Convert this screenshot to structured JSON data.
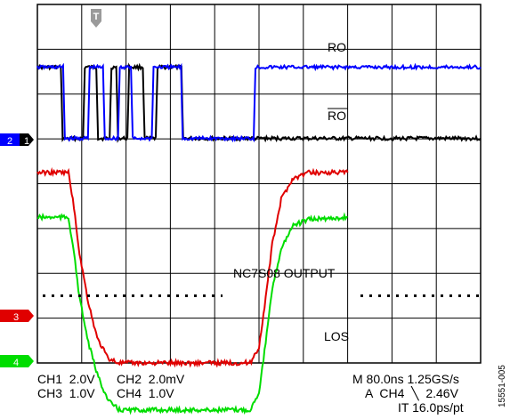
{
  "chart_data": {
    "type": "line",
    "title": "",
    "grid": true,
    "trace_labels": {
      "ro": "RO",
      "ro_bar": "RO",
      "nc7s08": "NC7S08 OUTPUT",
      "los": "LOS"
    },
    "channel_markers": [
      {
        "label": "2",
        "color": "#0000ff"
      },
      {
        "label": "1",
        "color": "#000000"
      },
      {
        "label": "3",
        "color": "#e00000"
      },
      {
        "label": "4",
        "color": "#00dd00"
      }
    ],
    "series": [
      {
        "name": "RO",
        "color": "#000000",
        "x": [
          0,
          0.53,
          0.57,
          1.03,
          1.07,
          1.33,
          1.37,
          1.63,
          1.67,
          1.78,
          1.82,
          2.03,
          2.07,
          2.38,
          2.42,
          2.67,
          2.71,
          3.25,
          3.29,
          10
        ],
        "y": [
          3,
          3,
          0,
          0,
          3,
          3,
          0,
          0,
          3,
          3,
          0,
          0,
          3,
          3,
          0,
          0,
          3,
          3,
          0,
          0
        ]
      },
      {
        "name": "RO (inverted)",
        "color": "#0000ff",
        "x": [
          0,
          0.58,
          0.62,
          1.14,
          1.18,
          1.48,
          1.52,
          1.82,
          1.86,
          2.11,
          2.15,
          2.58,
          2.62,
          3.24,
          3.28,
          4.88,
          4.92,
          10
        ],
        "y": [
          3,
          3,
          0,
          0,
          3,
          3,
          0,
          0,
          3,
          3,
          0,
          0,
          3,
          3,
          0,
          0,
          3,
          3
        ]
      },
      {
        "name": "NC7S08 OUTPUT",
        "color": "#e00000",
        "x": [
          0,
          0.7,
          0.8,
          0.95,
          1.15,
          1.35,
          1.6,
          1.85,
          4.8,
          5.0,
          5.15,
          5.3,
          5.5,
          5.75,
          6.1,
          7.0
        ],
        "y": [
          4.6,
          4.6,
          4.0,
          2.8,
          1.7,
          0.9,
          0.45,
          0.35,
          0.35,
          0.7,
          1.8,
          3.0,
          4.0,
          4.45,
          4.6,
          4.6
        ]
      },
      {
        "name": "LOS",
        "color": "#00dd00",
        "x": [
          0,
          0.7,
          0.8,
          0.95,
          1.15,
          1.35,
          1.6,
          1.85,
          4.8,
          5.0,
          5.15,
          5.3,
          5.5,
          5.75,
          6.1,
          7.0
        ],
        "y": [
          4.3,
          4.3,
          3.7,
          2.5,
          1.5,
          0.8,
          0.2,
          0.0,
          0.0,
          0.4,
          1.5,
          2.7,
          3.6,
          4.1,
          4.25,
          4.3
        ]
      }
    ],
    "dotted_threshold": {
      "y": 1.5,
      "units": "V"
    }
  },
  "status": {
    "ch1": "CH1  2.0V",
    "ch2": "CH2  2.0mV",
    "ch3": "CH3  1.0V",
    "ch4": "CH4  1.0V",
    "timebase": "M 80.0ns 1.25GS/s",
    "trigger": "A  CH4  ╲  2.46V",
    "interp": "IT 16.0ps/pt",
    "figure_id": "15551-005"
  }
}
